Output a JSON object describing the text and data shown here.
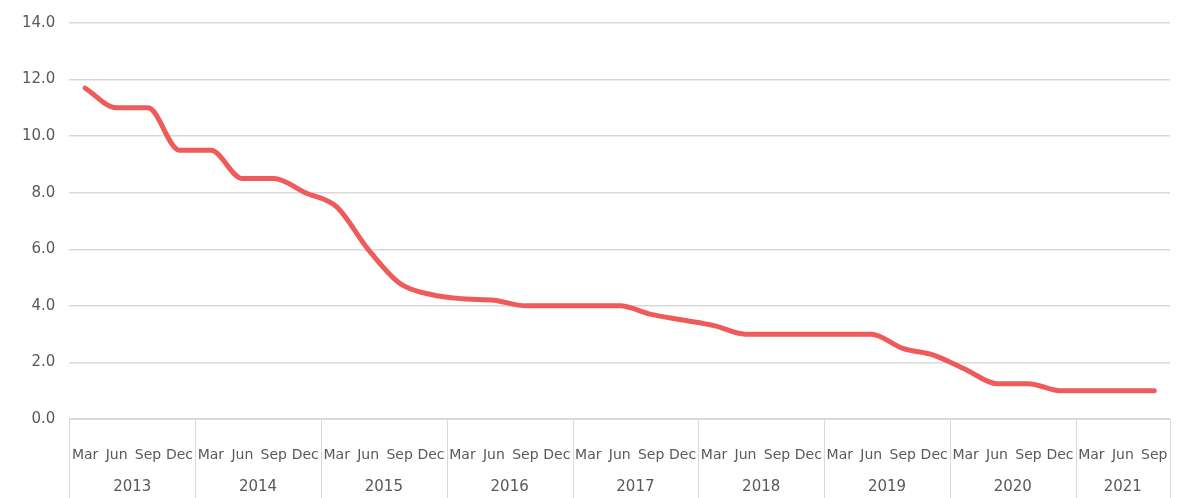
{
  "chart_data": {
    "type": "line",
    "categories": [
      "Mar",
      "Jun",
      "Sep",
      "Dec",
      "Mar",
      "Jun",
      "Sep",
      "Dec",
      "Mar",
      "Jun",
      "Sep",
      "Dec",
      "Mar",
      "Jun",
      "Sep",
      "Dec",
      "Mar",
      "Jun",
      "Sep",
      "Dec",
      "Mar",
      "Jun",
      "Sep",
      "Dec",
      "Mar",
      "Jun",
      "Sep",
      "Dec",
      "Mar",
      "Jun",
      "Sep",
      "Dec",
      "Mar",
      "Jun",
      "Sep"
    ],
    "series": [
      {
        "color": "#ef5b5b",
        "values": [
          11.7,
          11.0,
          11.0,
          9.5,
          9.5,
          8.5,
          8.5,
          8.0,
          7.5,
          6.0,
          4.8,
          4.4,
          4.25,
          4.2,
          4.0,
          4.0,
          4.0,
          4.0,
          3.7,
          3.5,
          3.3,
          3.0,
          3.0,
          3.0,
          3.0,
          3.0,
          2.5,
          2.25,
          1.75,
          1.25,
          1.25,
          1.0,
          1.0,
          1.0,
          1.0
        ]
      }
    ],
    "ylim": [
      0,
      14
    ],
    "yticks": [
      {
        "value": 0,
        "label": "0.0"
      },
      {
        "value": 2,
        "label": "2.0"
      },
      {
        "value": 4,
        "label": "4.0"
      },
      {
        "value": 6,
        "label": "6.0"
      },
      {
        "value": 8,
        "label": "8.0"
      },
      {
        "value": 10,
        "label": "10.0"
      },
      {
        "value": 12,
        "label": "12.0"
      },
      {
        "value": 14,
        "label": "14.0"
      }
    ],
    "grid": "y",
    "legend": false,
    "marker": "none",
    "line_style": "solid",
    "annotations": [
      "2013",
      "2014",
      "2015",
      "2016",
      "2017",
      "2018",
      "2019",
      "2020",
      "2021"
    ]
  }
}
